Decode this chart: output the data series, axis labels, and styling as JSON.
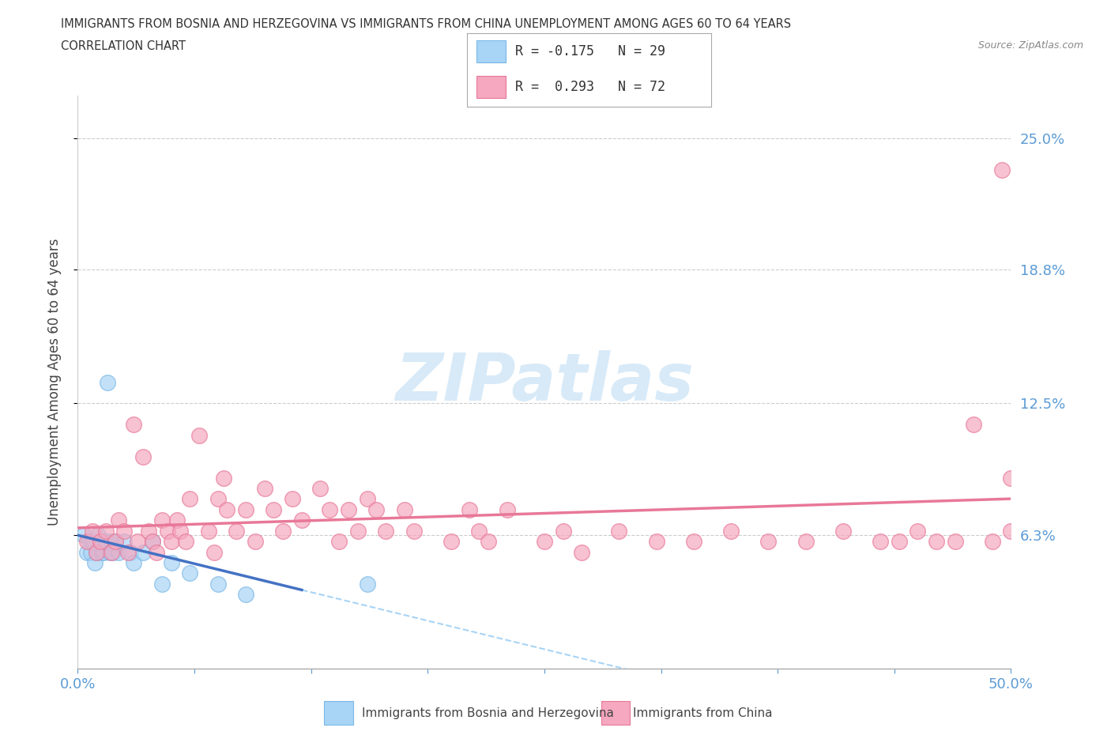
{
  "title_line1": "IMMIGRANTS FROM BOSNIA AND HERZEGOVINA VS IMMIGRANTS FROM CHINA UNEMPLOYMENT AMONG AGES 60 TO 64 YEARS",
  "title_line2": "CORRELATION CHART",
  "source_text": "Source: ZipAtlas.com",
  "ylabel": "Unemployment Among Ages 60 to 64 years",
  "xlim": [
    0.0,
    0.5
  ],
  "ylim": [
    0.0,
    0.27
  ],
  "ytick_positions": [
    0.063,
    0.125,
    0.188,
    0.25
  ],
  "ytick_labels_right": [
    "6.3%",
    "12.5%",
    "18.8%",
    "25.0%"
  ],
  "xtick_positions": [
    0.0,
    0.0625,
    0.125,
    0.1875,
    0.25,
    0.3125,
    0.375,
    0.4375,
    0.5
  ],
  "xtick_labels": [
    "0.0%",
    "",
    "",
    "",
    "",
    "",
    "",
    "",
    "50.0%"
  ],
  "bosnia_R": -0.175,
  "bosnia_N": 29,
  "china_R": 0.293,
  "china_N": 72,
  "bosnia_color": "#a8d4f5",
  "bosnia_edge_color": "#7ab8e8",
  "china_color": "#f5a8c0",
  "china_edge_color": "#e87898",
  "bosnia_trend_color": "#4472c4",
  "bosnia_trend_dash_color": "#a8d4f5",
  "china_trend_color": "#e87898",
  "watermark_color": "#d8eaf8",
  "background_color": "#ffffff",
  "legend_box_color_bosnia": "#a8d4f5",
  "legend_box_color_china": "#f5a8c0",
  "bosnia_x": [
    0.003,
    0.005,
    0.006,
    0.007,
    0.008,
    0.009,
    0.01,
    0.011,
    0.012,
    0.013,
    0.014,
    0.015,
    0.016,
    0.017,
    0.018,
    0.019,
    0.02,
    0.022,
    0.025,
    0.028,
    0.03,
    0.035,
    0.04,
    0.045,
    0.05,
    0.06,
    0.075,
    0.09,
    0.155
  ],
  "bosnia_y": [
    0.063,
    0.055,
    0.06,
    0.055,
    0.06,
    0.05,
    0.055,
    0.063,
    0.06,
    0.055,
    0.055,
    0.06,
    0.135,
    0.055,
    0.06,
    0.055,
    0.06,
    0.055,
    0.06,
    0.055,
    0.05,
    0.055,
    0.06,
    0.04,
    0.05,
    0.045,
    0.04,
    0.035,
    0.04
  ],
  "china_x": [
    0.005,
    0.008,
    0.01,
    0.012,
    0.015,
    0.018,
    0.02,
    0.022,
    0.025,
    0.027,
    0.03,
    0.032,
    0.035,
    0.038,
    0.04,
    0.042,
    0.045,
    0.048,
    0.05,
    0.053,
    0.055,
    0.058,
    0.06,
    0.065,
    0.07,
    0.073,
    0.075,
    0.078,
    0.08,
    0.085,
    0.09,
    0.095,
    0.1,
    0.105,
    0.11,
    0.115,
    0.12,
    0.13,
    0.135,
    0.14,
    0.145,
    0.15,
    0.155,
    0.16,
    0.165,
    0.175,
    0.18,
    0.2,
    0.21,
    0.215,
    0.22,
    0.23,
    0.25,
    0.26,
    0.27,
    0.29,
    0.31,
    0.33,
    0.35,
    0.37,
    0.39,
    0.41,
    0.43,
    0.44,
    0.45,
    0.46,
    0.47,
    0.48,
    0.49,
    0.495,
    0.5,
    0.5
  ],
  "china_y": [
    0.06,
    0.065,
    0.055,
    0.06,
    0.065,
    0.055,
    0.06,
    0.07,
    0.065,
    0.055,
    0.115,
    0.06,
    0.1,
    0.065,
    0.06,
    0.055,
    0.07,
    0.065,
    0.06,
    0.07,
    0.065,
    0.06,
    0.08,
    0.11,
    0.065,
    0.055,
    0.08,
    0.09,
    0.075,
    0.065,
    0.075,
    0.06,
    0.085,
    0.075,
    0.065,
    0.08,
    0.07,
    0.085,
    0.075,
    0.06,
    0.075,
    0.065,
    0.08,
    0.075,
    0.065,
    0.075,
    0.065,
    0.06,
    0.075,
    0.065,
    0.06,
    0.075,
    0.06,
    0.065,
    0.055,
    0.065,
    0.06,
    0.06,
    0.065,
    0.06,
    0.06,
    0.065,
    0.06,
    0.06,
    0.065,
    0.06,
    0.06,
    0.115,
    0.06,
    0.235,
    0.09,
    0.065
  ]
}
